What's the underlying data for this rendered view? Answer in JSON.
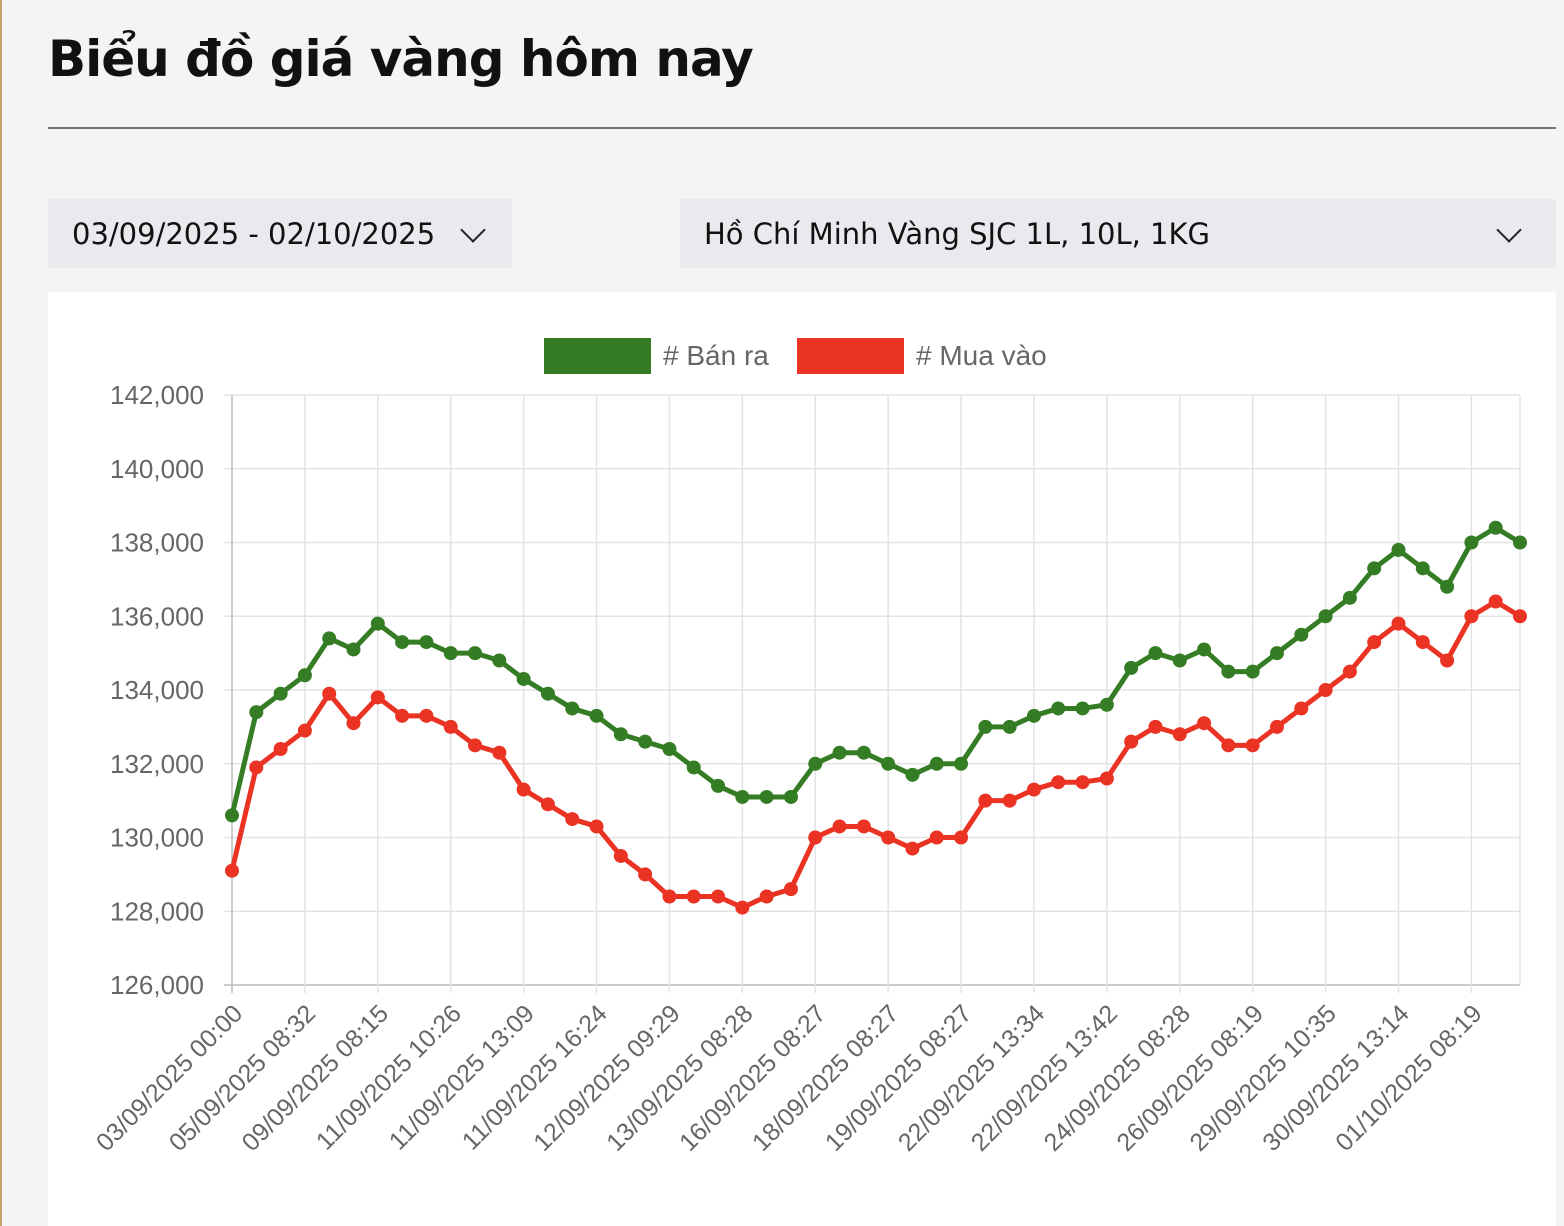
{
  "page_title": "Biểu đồ giá vàng hôm nay",
  "filters": {
    "date_range": "03/09/2025 - 02/10/2025",
    "product": "Hồ Chí Minh Vàng SJC 1L, 10L, 1KG"
  },
  "chart_data": {
    "type": "line",
    "legend_placement": "top",
    "grid": true,
    "ylim": [
      126000,
      142000
    ],
    "yticks": [
      "126,000",
      "128,000",
      "130,000",
      "132,000",
      "134,000",
      "136,000",
      "138,000",
      "140,000",
      "142,000"
    ],
    "x_tick_labels": [
      "03/09/2025 00:00",
      "05/09/2025 08:32",
      "09/09/2025 08:15",
      "11/09/2025 10:26",
      "11/09/2025 13:09",
      "11/09/2025 16:24",
      "12/09/2025 09:29",
      "13/09/2025 08:28",
      "16/09/2025 08:27",
      "18/09/2025 08:27",
      "19/09/2025 08:27",
      "22/09/2025 13:34",
      "22/09/2025 13:42",
      "24/09/2025 08:28",
      "26/09/2025 08:19",
      "29/09/2025 10:35",
      "30/09/2025 13:14",
      "01/10/2025 08:19"
    ],
    "series": [
      {
        "name": "# Bán ra",
        "color": "#347d24",
        "values": [
          130600,
          133400,
          133900,
          134400,
          135400,
          135100,
          135800,
          135300,
          135300,
          135000,
          135000,
          134800,
          134300,
          133900,
          133500,
          133300,
          132800,
          132600,
          132400,
          131900,
          131400,
          131100,
          131100,
          131100,
          132000,
          132300,
          132300,
          132000,
          131700,
          132000,
          132000,
          133000,
          133000,
          133300,
          133500,
          133500,
          133600,
          134600,
          135000,
          134800,
          135100,
          134500,
          134500,
          135000,
          135500,
          136000,
          136500,
          137300,
          137800,
          137300,
          136800,
          138000,
          138400,
          138000
        ]
      },
      {
        "name": "# Mua vào",
        "color": "#ea3323",
        "values": [
          129100,
          131900,
          132400,
          132900,
          133900,
          133100,
          133800,
          133300,
          133300,
          133000,
          132500,
          132300,
          131300,
          130900,
          130500,
          130300,
          129500,
          129000,
          128400,
          128400,
          128400,
          128100,
          128400,
          128600,
          130000,
          130300,
          130300,
          130000,
          129700,
          130000,
          130000,
          131000,
          131000,
          131300,
          131500,
          131500,
          131600,
          132600,
          133000,
          132800,
          133100,
          132500,
          132500,
          133000,
          133500,
          134000,
          134500,
          135300,
          135800,
          135300,
          134800,
          136000,
          136400,
          136000
        ]
      }
    ]
  }
}
